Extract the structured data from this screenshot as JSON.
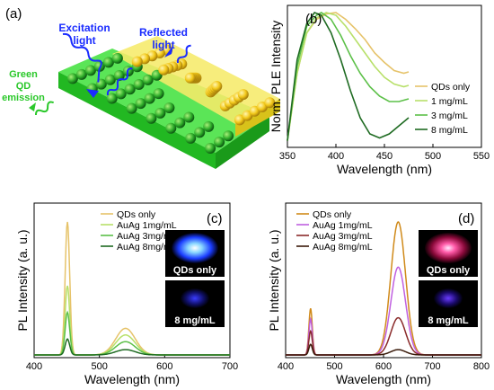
{
  "panels": {
    "a": {
      "label": "(a)",
      "excitation": [
        "Excitation",
        "light"
      ],
      "reflected": [
        "Reflected",
        "light"
      ],
      "emission": [
        "Green",
        "QD",
        "emission"
      ]
    },
    "b": {
      "label": "(b)"
    },
    "c": {
      "label": "(c)",
      "inset_top": "QDs only",
      "inset_bottom": "8 mg/mL"
    },
    "d": {
      "label": "(d)",
      "inset_top": "QDs only",
      "inset_bottom": "8 mg/mL"
    }
  },
  "colors": {
    "qd": "#e6c36a",
    "c1": "#b8e06a",
    "c3": "#5cc048",
    "c8": "#1f6b22",
    "dqd": "#d08a1a",
    "d1": "#c060e0",
    "d3": "#8a2a2a",
    "d8": "#3a1a0a"
  },
  "chart_data": [
    {
      "type": "line",
      "panel": "b",
      "xlabel": "Wavelength (nm)",
      "ylabel": "Norm. PLE Intensity",
      "xlim": [
        350,
        550
      ],
      "xticks": [
        350,
        400,
        450,
        500,
        550
      ],
      "series": [
        {
          "name": "QDs only",
          "color": "#e6c36a",
          "points": [
            [
              350,
              0.05
            ],
            [
              360,
              0.55
            ],
            [
              370,
              0.85
            ],
            [
              380,
              0.95
            ],
            [
              390,
              0.99
            ],
            [
              400,
              1.0
            ],
            [
              410,
              0.95
            ],
            [
              420,
              0.88
            ],
            [
              430,
              0.8
            ],
            [
              440,
              0.7
            ],
            [
              450,
              0.63
            ],
            [
              460,
              0.57
            ],
            [
              470,
              0.55
            ],
            [
              475,
              0.56
            ]
          ]
        },
        {
          "name": "1 mg/mL",
          "color": "#b8e06a",
          "points": [
            [
              350,
              0.05
            ],
            [
              360,
              0.55
            ],
            [
              370,
              0.85
            ],
            [
              380,
              0.96
            ],
            [
              390,
              1.0
            ],
            [
              400,
              0.98
            ],
            [
              410,
              0.9
            ],
            [
              420,
              0.8
            ],
            [
              430,
              0.7
            ],
            [
              440,
              0.6
            ],
            [
              450,
              0.52
            ],
            [
              460,
              0.47
            ],
            [
              470,
              0.45
            ],
            [
              475,
              0.46
            ]
          ]
        },
        {
          "name": "3 mg/mL",
          "color": "#5cc048",
          "points": [
            [
              350,
              0.05
            ],
            [
              360,
              0.6
            ],
            [
              370,
              0.9
            ],
            [
              380,
              0.98
            ],
            [
              385,
              1.0
            ],
            [
              395,
              0.95
            ],
            [
              405,
              0.83
            ],
            [
              415,
              0.68
            ],
            [
              425,
              0.55
            ],
            [
              435,
              0.45
            ],
            [
              445,
              0.38
            ],
            [
              455,
              0.34
            ],
            [
              465,
              0.34
            ],
            [
              475,
              0.36
            ]
          ]
        },
        {
          "name": "8 mg/mL",
          "color": "#1f6b22",
          "points": [
            [
              350,
              0.05
            ],
            [
              360,
              0.65
            ],
            [
              370,
              0.92
            ],
            [
              378,
              1.0
            ],
            [
              385,
              0.98
            ],
            [
              395,
              0.85
            ],
            [
              405,
              0.65
            ],
            [
              415,
              0.42
            ],
            [
              425,
              0.22
            ],
            [
              435,
              0.1
            ],
            [
              445,
              0.07
            ],
            [
              455,
              0.1
            ],
            [
              465,
              0.16
            ],
            [
              475,
              0.22
            ]
          ]
        }
      ]
    },
    {
      "type": "line",
      "panel": "c",
      "xlabel": "Wavelength (nm)",
      "ylabel": "PL Intensity (a. u.)",
      "xlim": [
        400,
        700
      ],
      "xticks": [
        400,
        500,
        600,
        700
      ],
      "series": [
        {
          "name": "QDs only",
          "color": "#e6c36a",
          "peaks": [
            [
              451,
              1.0,
              3.5
            ],
            [
              540,
              0.2,
              15
            ]
          ]
        },
        {
          "name": "AuAg 1mg/mL",
          "color": "#b8e06a",
          "peaks": [
            [
              451,
              0.52,
              3.5
            ],
            [
              540,
              0.15,
              15
            ]
          ]
        },
        {
          "name": "AuAg 3mg/mL",
          "color": "#5cc048",
          "peaks": [
            [
              451,
              0.32,
              3.5
            ],
            [
              540,
              0.1,
              15
            ]
          ]
        },
        {
          "name": "AuAg 8mg/mL",
          "color": "#1f6b22",
          "peaks": [
            [
              451,
              0.12,
              3.5
            ],
            [
              540,
              0.04,
              15
            ]
          ]
        }
      ]
    },
    {
      "type": "line",
      "panel": "d",
      "xlabel": "Wavelength (nm)",
      "ylabel": "PL Intensity (a. u.)",
      "xlim": [
        400,
        800
      ],
      "xticks": [
        400,
        500,
        600,
        700,
        800
      ],
      "series": [
        {
          "name": "QDs only",
          "color": "#d08a1a",
          "peaks": [
            [
              451,
              0.35,
              3.5
            ],
            [
              630,
              1.0,
              15
            ]
          ]
        },
        {
          "name": "AuAg 1mg/mL",
          "color": "#c060e0",
          "peaks": [
            [
              451,
              0.27,
              3.5
            ],
            [
              630,
              0.66,
              15
            ]
          ]
        },
        {
          "name": "AuAg 3mg/mL",
          "color": "#8a2a2a",
          "peaks": [
            [
              451,
              0.18,
              3.5
            ],
            [
              630,
              0.28,
              15
            ]
          ]
        },
        {
          "name": "AuAg 8mg/mL",
          "color": "#3a1a0a",
          "peaks": [
            [
              451,
              0.08,
              3.5
            ],
            [
              630,
              0.04,
              15
            ]
          ]
        }
      ]
    }
  ]
}
